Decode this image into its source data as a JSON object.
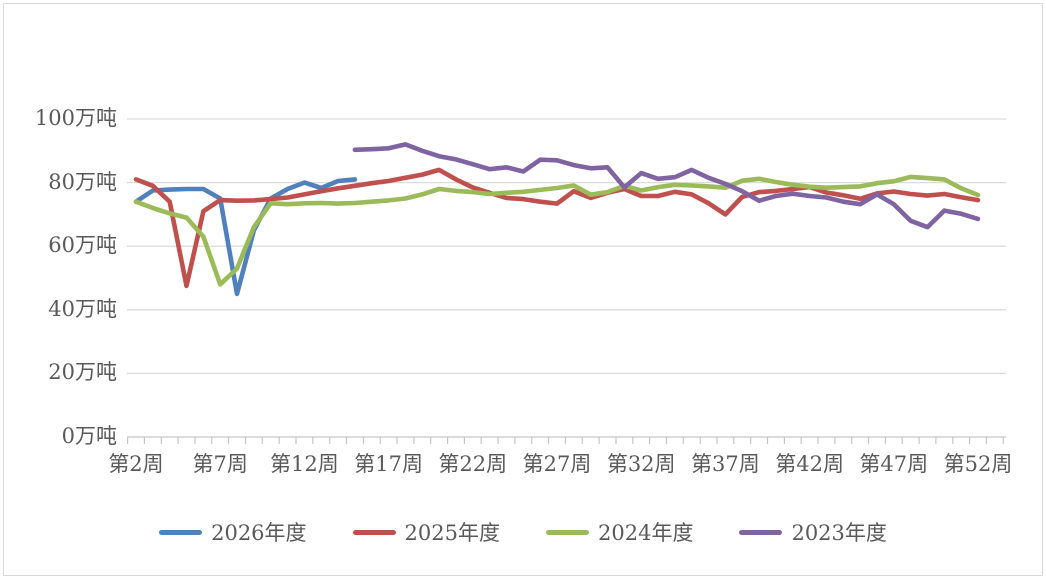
{
  "chart_data": {
    "type": "line",
    "title": "",
    "unit": "万吨",
    "y_axis": {
      "min": 0,
      "max": 100,
      "step": 20,
      "tick_labels": [
        "0万吨",
        "20万吨",
        "40万吨",
        "60万吨",
        "80万吨",
        "100万吨"
      ]
    },
    "x_axis": {
      "week_start": 2,
      "week_end": 52,
      "label_interval": 5,
      "tick_weeks": [
        2,
        7,
        12,
        17,
        22,
        27,
        32,
        37,
        42,
        47,
        52
      ],
      "tick_labels": [
        "第2周",
        "第7周",
        "第12周",
        "第17周",
        "第22周",
        "第27周",
        "第32周",
        "第37周",
        "第42周",
        "第47周",
        "第52周"
      ]
    },
    "grid": "horizontal",
    "legend_position": "bottom",
    "series": [
      {
        "name": "2026年度",
        "color": "#4F81BD",
        "start_week": 2,
        "values": [
          74,
          77.5,
          77.8,
          78,
          78,
          75,
          45,
          65,
          75,
          78,
          80,
          78.3,
          80.5,
          81
        ]
      },
      {
        "name": "2025年度",
        "color": "#C0504D",
        "start_week": 2,
        "values": [
          81,
          79,
          74,
          47.5,
          71,
          74.5,
          74.3,
          74.4,
          74.8,
          75.3,
          76.3,
          77.3,
          78.2,
          79,
          79.8,
          80.5,
          81.5,
          82.5,
          84,
          81,
          78.5,
          76.8,
          75.2,
          74.8,
          74,
          73.4,
          77.3,
          75.2,
          76.8,
          78,
          75.8,
          75.8,
          77.1,
          76.3,
          73.5,
          70,
          75.5,
          77,
          77.4,
          78,
          78.6,
          76.9,
          76,
          74.9,
          76.6,
          77.2,
          76.4,
          75.9,
          76.4,
          75.4,
          74.5
        ]
      },
      {
        "name": "2024年度",
        "color": "#9BBB59",
        "start_week": 2,
        "values": [
          74,
          72,
          70.3,
          69,
          63,
          48,
          53,
          66,
          73.5,
          73.2,
          73.5,
          73.6,
          73.4,
          73.6,
          74,
          74.4,
          75,
          76.3,
          78,
          77.4,
          77,
          76.4,
          76.8,
          77.1,
          77.7,
          78.3,
          79.1,
          76.2,
          77,
          79,
          77.5,
          78.6,
          79.3,
          79.1,
          78.8,
          78.4,
          80.6,
          81.2,
          80.2,
          79.3,
          78.7,
          78.4,
          78.6,
          78.8,
          79.8,
          80.4,
          81.8,
          81.4,
          81,
          78.2,
          76.1
        ]
      },
      {
        "name": "2023年度",
        "color": "#8064A2",
        "start_week": 15,
        "values": [
          90.3,
          90.5,
          90.8,
          92,
          90,
          88.3,
          87.3,
          85.8,
          84.2,
          84.8,
          83.5,
          87.2,
          87,
          85.5,
          84.5,
          84.8,
          78.5,
          83,
          81.2,
          81.7,
          84,
          81.5,
          79.6,
          77.3,
          74.3,
          75.8,
          76.5,
          75.8,
          75.3,
          74,
          73.2,
          76.3,
          73.2,
          68,
          66,
          71.2,
          70.2,
          68.6
        ]
      }
    ]
  },
  "colors": {
    "text": "#595959",
    "gridline": "#DCDCDC",
    "axis_line": "#C6C6C6",
    "tick": "#C6C6C6",
    "background": "#FFFFFF",
    "frame_border": "#D9D9D9"
  }
}
